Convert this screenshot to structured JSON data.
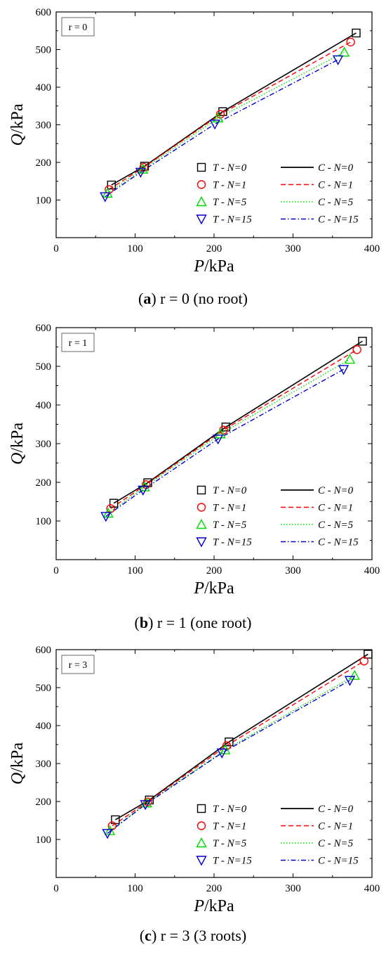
{
  "panels": [
    {
      "caption_letter": "a",
      "caption_rest": " r = 0 (no root)",
      "chart_data": {
        "type": "line",
        "annotation": "r = 0",
        "xlabel_italic": "P",
        "xlabel_rest": "/kPa",
        "ylabel_italic": "Q",
        "ylabel_rest": "/kPa",
        "xlim": [
          0,
          400
        ],
        "ylim": [
          0,
          600
        ],
        "xticks": [
          0,
          100,
          200,
          300,
          400
        ],
        "yticks": [
          100,
          200,
          300,
          400,
          500,
          600
        ],
        "grid": false,
        "legend_position": "lower-right",
        "series": [
          {
            "name": "T - N=0",
            "kind": "marker",
            "marker": "square",
            "color": "#000000",
            "x": [
              70,
              112,
              211,
              380
            ],
            "y": [
              140,
              190,
              335,
              544
            ]
          },
          {
            "name": "T - N=1",
            "kind": "marker",
            "marker": "circle",
            "color": "#ff0000",
            "x": [
              67,
              111,
              208,
              373
            ],
            "y": [
              128,
              187,
              328,
              520
            ]
          },
          {
            "name": "T - N=5",
            "kind": "marker",
            "marker": "triangle-up",
            "color": "#00dd00",
            "x": [
              65,
              110,
              205,
              365
            ],
            "y": [
              118,
              182,
              318,
              493
            ]
          },
          {
            "name": "T - N=15",
            "kind": "marker",
            "marker": "triangle-down",
            "color": "#0000cc",
            "x": [
              62,
              107,
              201,
              357
            ],
            "y": [
              109,
              174,
              302,
              473
            ]
          },
          {
            "name": "C - N=0",
            "kind": "line",
            "dash": "solid",
            "color": "#000000",
            "x": [
              70,
              112,
              211,
              380
            ],
            "y": [
              140,
              190,
              335,
              544
            ]
          },
          {
            "name": "C - N=1",
            "kind": "line",
            "dash": "dashed",
            "color": "#ff0000",
            "x": [
              67,
              111,
              208,
              373
            ],
            "y": [
              128,
              187,
              328,
              520
            ]
          },
          {
            "name": "C - N=5",
            "kind": "line",
            "dash": "dotted",
            "color": "#00dd00",
            "x": [
              65,
              110,
              205,
              365
            ],
            "y": [
              118,
              182,
              318,
              493
            ]
          },
          {
            "name": "C - N=15",
            "kind": "line",
            "dash": "dashdot",
            "color": "#0000cc",
            "x": [
              62,
              107,
              201,
              357
            ],
            "y": [
              109,
              174,
              302,
              473
            ]
          }
        ]
      }
    },
    {
      "caption_letter": "b",
      "caption_rest": " r = 1 (one root)",
      "chart_data": {
        "type": "line",
        "annotation": "r = 1",
        "xlabel_italic": "P",
        "xlabel_rest": "/kPa",
        "ylabel_italic": "Q",
        "ylabel_rest": "/kPa",
        "xlim": [
          0,
          400
        ],
        "ylim": [
          0,
          600
        ],
        "xticks": [
          0,
          100,
          200,
          300,
          400
        ],
        "yticks": [
          100,
          200,
          300,
          400,
          500,
          600
        ],
        "grid": false,
        "legend_position": "lower-right",
        "series": [
          {
            "name": "T - N=0",
            "kind": "marker",
            "marker": "square",
            "color": "#000000",
            "x": [
              73,
              116,
              215,
              388
            ],
            "y": [
              146,
              199,
              343,
              565
            ]
          },
          {
            "name": "T - N=1",
            "kind": "marker",
            "marker": "circle",
            "color": "#ff0000",
            "x": [
              69,
              114,
              212,
              381
            ],
            "y": [
              132,
              194,
              335,
              543
            ]
          },
          {
            "name": "T - N=5",
            "kind": "marker",
            "marker": "triangle-up",
            "color": "#00dd00",
            "x": [
              66,
              112,
              208,
              372
            ],
            "y": [
              120,
              188,
              325,
              518
            ]
          },
          {
            "name": "T - N=15",
            "kind": "marker",
            "marker": "triangle-down",
            "color": "#0000cc",
            "x": [
              63,
              110,
              205,
              364
            ],
            "y": [
              112,
              180,
              312,
              492
            ]
          },
          {
            "name": "C - N=0",
            "kind": "line",
            "dash": "solid",
            "color": "#000000",
            "x": [
              73,
              116,
              215,
              388
            ],
            "y": [
              146,
              199,
              343,
              565
            ]
          },
          {
            "name": "C - N=1",
            "kind": "line",
            "dash": "dashed",
            "color": "#ff0000",
            "x": [
              69,
              114,
              212,
              381
            ],
            "y": [
              132,
              194,
              335,
              543
            ]
          },
          {
            "name": "C - N=5",
            "kind": "line",
            "dash": "dotted",
            "color": "#00dd00",
            "x": [
              66,
              112,
              208,
              372
            ],
            "y": [
              120,
              188,
              325,
              518
            ]
          },
          {
            "name": "C - N=15",
            "kind": "line",
            "dash": "dashdot",
            "color": "#0000cc",
            "x": [
              63,
              110,
              205,
              364
            ],
            "y": [
              112,
              180,
              312,
              492
            ]
          }
        ]
      }
    },
    {
      "caption_letter": "c",
      "caption_rest": " r = 3 (3 roots)",
      "chart_data": {
        "type": "line",
        "annotation": "r = 3",
        "xlabel_italic": "P",
        "xlabel_rest": "/kPa",
        "ylabel_italic": "Q",
        "ylabel_rest": "/kPa",
        "xlim": [
          0,
          400
        ],
        "ylim": [
          0,
          600
        ],
        "xticks": [
          0,
          100,
          200,
          300,
          400
        ],
        "yticks": [
          100,
          200,
          300,
          400,
          500,
          600
        ],
        "grid": false,
        "legend_position": "lower-right",
        "series": [
          {
            "name": "T - N=0",
            "kind": "marker",
            "marker": "square",
            "color": "#000000",
            "x": [
              75,
              118,
              219,
              395
            ],
            "y": [
              152,
              204,
              357,
              588
            ]
          },
          {
            "name": "T - N=1",
            "kind": "marker",
            "marker": "circle",
            "color": "#ff0000",
            "x": [
              71,
              116,
              216,
              390
            ],
            "y": [
              136,
              199,
              347,
              570
            ]
          },
          {
            "name": "T - N=5",
            "kind": "marker",
            "marker": "triangle-up",
            "color": "#00dd00",
            "x": [
              68,
              115,
              214,
              378
            ],
            "y": [
              123,
              196,
              336,
              532
            ]
          },
          {
            "name": "T - N=15",
            "kind": "marker",
            "marker": "triangle-down",
            "color": "#0000cc",
            "x": [
              65,
              113,
              210,
              372
            ],
            "y": [
              116,
              192,
              328,
              519
            ]
          },
          {
            "name": "C - N=0",
            "kind": "line",
            "dash": "solid",
            "color": "#000000",
            "x": [
              75,
              118,
              219,
              395
            ],
            "y": [
              152,
              204,
              357,
              588
            ]
          },
          {
            "name": "C - N=1",
            "kind": "line",
            "dash": "dashed",
            "color": "#ff0000",
            "x": [
              71,
              116,
              216,
              390
            ],
            "y": [
              136,
              199,
              347,
              570
            ]
          },
          {
            "name": "C - N=5",
            "kind": "line",
            "dash": "dotted",
            "color": "#00dd00",
            "x": [
              68,
              115,
              214,
              378
            ],
            "y": [
              123,
              196,
              336,
              532
            ]
          },
          {
            "name": "C - N=15",
            "kind": "line",
            "dash": "dashdot",
            "color": "#0000cc",
            "x": [
              65,
              113,
              210,
              372
            ],
            "y": [
              116,
              192,
              328,
              519
            ]
          }
        ]
      }
    }
  ]
}
